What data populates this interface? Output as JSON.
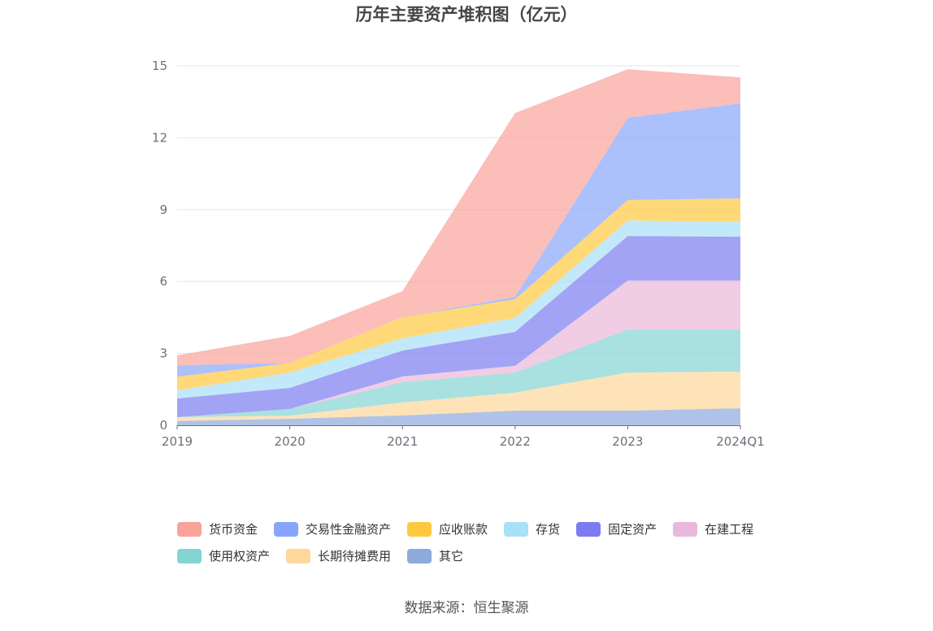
{
  "chart_data": {
    "type": "area",
    "stacked": true,
    "title": "历年主要资产堆积图（亿元）",
    "xlabel": "",
    "ylabel": "",
    "categories": [
      "2019",
      "2020",
      "2021",
      "2022",
      "2023",
      "2024Q1"
    ],
    "ylim": [
      0,
      15
    ],
    "yticks": [
      0,
      3,
      6,
      9,
      12,
      15
    ],
    "grid": true,
    "legend_position": "bottom",
    "series": [
      {
        "name": "货币资金",
        "color": "#f9a39a",
        "values": [
          0.42,
          1.13,
          1.09,
          7.67,
          2.03,
          1.08
        ]
      },
      {
        "name": "交易性金融资产",
        "color": "#89a5fb",
        "values": [
          0.47,
          0.0,
          0.0,
          0.1,
          3.43,
          3.97
        ]
      },
      {
        "name": "应收账款",
        "color": "#ffc93f",
        "values": [
          0.57,
          0.4,
          0.88,
          0.78,
          0.85,
          0.99
        ]
      },
      {
        "name": "存货",
        "color": "#a8e0f8",
        "values": [
          0.34,
          0.64,
          0.51,
          0.58,
          0.65,
          0.61
        ]
      },
      {
        "name": "固定资产",
        "color": "#7a7cf0",
        "values": [
          0.78,
          0.88,
          1.08,
          1.42,
          1.86,
          1.83
        ]
      },
      {
        "name": "在建工程",
        "color": "#e9b8da",
        "values": [
          0.0,
          0.0,
          0.24,
          0.28,
          2.04,
          2.04
        ]
      },
      {
        "name": "使用权资产",
        "color": "#84d4d4",
        "values": [
          0.0,
          0.28,
          0.85,
          0.84,
          1.8,
          1.76
        ]
      },
      {
        "name": "长期待摊费用",
        "color": "#fed79a",
        "values": [
          0.16,
          0.13,
          0.54,
          0.75,
          1.59,
          1.53
        ]
      },
      {
        "name": "其它",
        "color": "#8eaadb",
        "values": [
          0.18,
          0.27,
          0.41,
          0.61,
          0.61,
          0.71
        ]
      }
    ]
  },
  "source": {
    "text": "数据来源：恒生聚源"
  }
}
